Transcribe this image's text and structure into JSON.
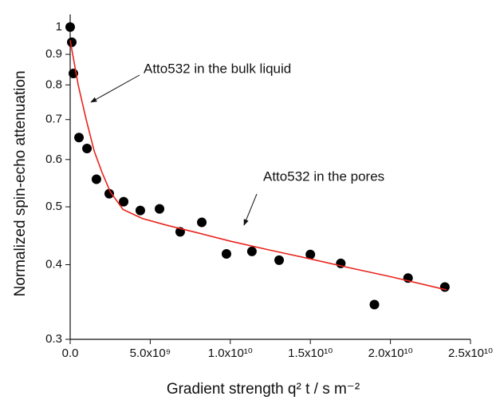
{
  "chart_data": {
    "type": "scatter",
    "y_label": "Normalized spin-echo attenuation",
    "x_label": "Gradient strength q² t / s m⁻²",
    "annotations": [
      "Atto532 in the bulk liquid",
      "Atto532 in the pores"
    ],
    "ylog": true,
    "xlim": [
      0,
      25000000000
    ],
    "ylim": [
      0.3,
      1.05
    ],
    "xticks": [
      {
        "value": 0,
        "label": "0.0"
      },
      {
        "value": 5000000000,
        "label": "5.0x10⁹"
      },
      {
        "value": 10000000000,
        "label": "1.0x10¹⁰"
      },
      {
        "value": 15000000000,
        "label": "1.5x10¹⁰"
      },
      {
        "value": 20000000000,
        "label": "2.0x10¹⁰"
      },
      {
        "value": 25000000000,
        "label": "2.5x10¹⁰"
      }
    ],
    "yticks": [
      0.3,
      0.4,
      0.5,
      0.6,
      0.7,
      0.8,
      0.9,
      1
    ],
    "series": [
      {
        "type": "scatter",
        "color": "#000000",
        "x": [
          0,
          100000000,
          200000000,
          550000000,
          1050000000,
          1640000000,
          2440000000,
          3340000000,
          4380000000,
          5580000000,
          6870000000,
          8220000000,
          9760000000,
          11350000000,
          13050000000,
          15000000000,
          16900000000,
          19000000000,
          21100000000,
          23400000000
        ],
        "values": [
          1.0,
          0.943,
          0.836,
          0.653,
          0.626,
          0.556,
          0.526,
          0.51,
          0.493,
          0.496,
          0.454,
          0.471,
          0.417,
          0.421,
          0.407,
          0.416,
          0.402,
          0.343,
          0.38,
          0.367
        ]
      },
      {
        "type": "line",
        "color": "#e8241c",
        "x": [
          0,
          500000000,
          1000000000,
          1500000000,
          2000000000,
          2500000000,
          3300000000,
          4500000000,
          6000000000,
          8000000000,
          10000000000,
          12500000000,
          15000000000,
          17500000000,
          20000000000,
          23500000000
        ],
        "values": [
          0.95,
          0.8,
          0.7,
          0.62,
          0.57,
          0.53,
          0.495,
          0.478,
          0.466,
          0.452,
          0.438,
          0.423,
          0.409,
          0.395,
          0.382,
          0.363
        ]
      }
    ]
  }
}
